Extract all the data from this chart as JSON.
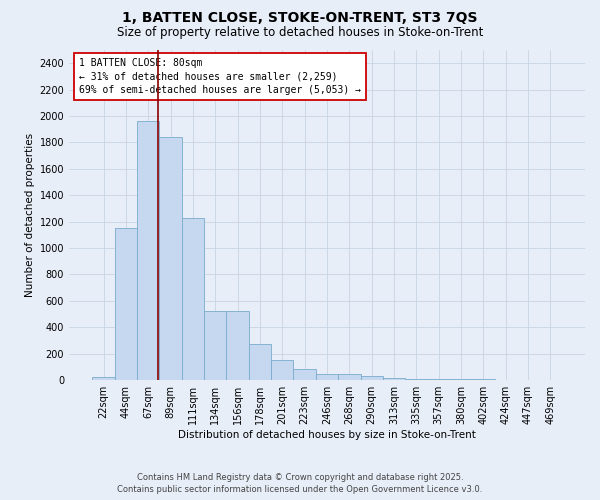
{
  "title_line1": "1, BATTEN CLOSE, STOKE-ON-TRENT, ST3 7QS",
  "title_line2": "Size of property relative to detached houses in Stoke-on-Trent",
  "xlabel": "Distribution of detached houses by size in Stoke-on-Trent",
  "ylabel": "Number of detached properties",
  "categories": [
    "22sqm",
    "44sqm",
    "67sqm",
    "89sqm",
    "111sqm",
    "134sqm",
    "156sqm",
    "178sqm",
    "201sqm",
    "223sqm",
    "246sqm",
    "268sqm",
    "290sqm",
    "313sqm",
    "335sqm",
    "357sqm",
    "380sqm",
    "402sqm",
    "424sqm",
    "447sqm",
    "469sqm"
  ],
  "values": [
    25,
    1155,
    1960,
    1840,
    1230,
    520,
    520,
    270,
    150,
    80,
    45,
    45,
    30,
    15,
    10,
    10,
    5,
    5,
    2,
    2,
    2
  ],
  "bar_color": "#c5d8f0",
  "bar_edge_color": "#7aabcc",
  "grid_color": "#c8d4e4",
  "background_color": "#e8eef8",
  "vline_color": "#8b0000",
  "annotation_text": "1 BATTEN CLOSE: 80sqm\n← 31% of detached houses are smaller (2,259)\n69% of semi-detached houses are larger (5,053) →",
  "annotation_box_color": "#ffffff",
  "annotation_box_edge": "#cc0000",
  "footer_line1": "Contains HM Land Registry data © Crown copyright and database right 2025.",
  "footer_line2": "Contains public sector information licensed under the Open Government Licence v3.0.",
  "ylim": [
    0,
    2500
  ],
  "yticks": [
    0,
    200,
    400,
    600,
    800,
    1000,
    1200,
    1400,
    1600,
    1800,
    2000,
    2200,
    2400
  ],
  "title_fontsize": 10,
  "subtitle_fontsize": 8.5,
  "axis_label_fontsize": 7.5,
  "tick_fontsize": 7,
  "annotation_fontsize": 7,
  "footer_fontsize": 6
}
